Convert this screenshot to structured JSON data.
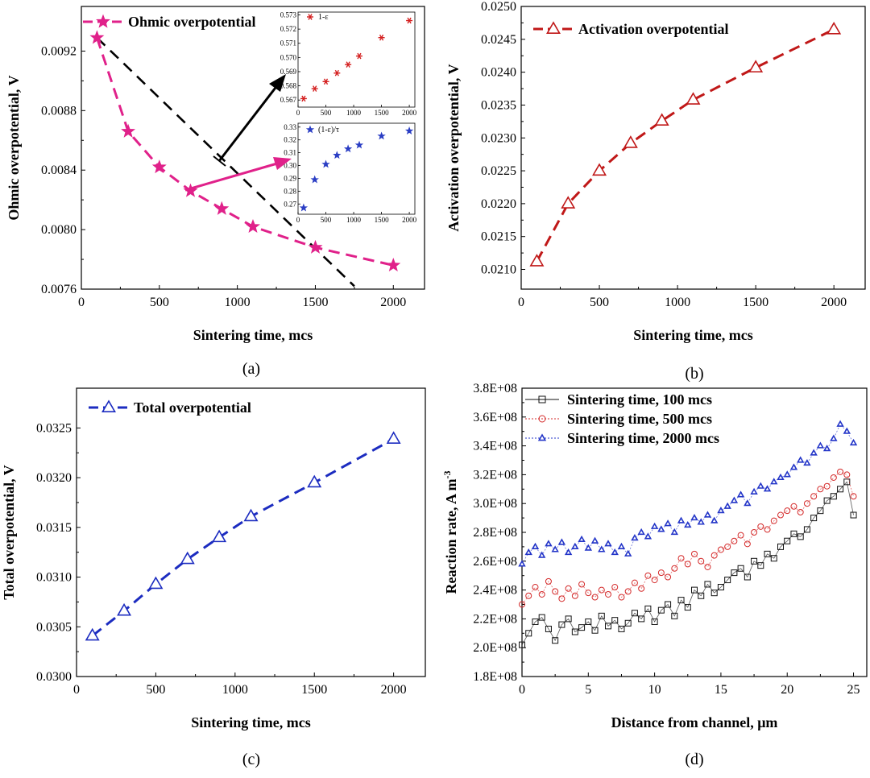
{
  "chart_data": [
    {
      "id": "a",
      "panel_label": "(a)",
      "type": "line",
      "xlabel": "Sintering time, mcs",
      "ylabel": "Ohmic overpotential, V",
      "xlim": [
        0,
        2200
      ],
      "ylim": [
        0.0076,
        0.0095
      ],
      "xticks": [
        0,
        500,
        1000,
        1500,
        2000
      ],
      "yticks": [
        0.0076,
        0.008,
        0.0084,
        0.0088,
        0.0092
      ],
      "xtick_labels": [
        "0",
        "500",
        "1000",
        "1500",
        "2000"
      ],
      "ytick_labels": [
        "0.0076",
        "0.0080",
        "0.0084",
        "0.0088",
        "0.0092"
      ],
      "legend_position": "top-left",
      "series": [
        {
          "name": "Ohmic overpotential",
          "color": "#e0218a",
          "marker": "star",
          "x": [
            100,
            300,
            500,
            700,
            900,
            1100,
            1500,
            2000
          ],
          "values": [
            0.00929,
            0.00866,
            0.00842,
            0.00826,
            0.00814,
            0.00802,
            0.00788,
            0.00776
          ]
        }
      ],
      "trend_line": {
        "color": "#000000",
        "x": [
          100,
          1750
        ],
        "values": [
          0.00929,
          0.00762
        ]
      },
      "insets": [
        {
          "label": "1-ε",
          "color": "#d42020",
          "marker": "asterisk",
          "xlim": [
            0,
            2100
          ],
          "ylim": [
            0.5665,
            0.5732
          ],
          "xticks": [
            0,
            500,
            1000,
            1500,
            2000
          ],
          "xtick_labels": [
            "0",
            "500",
            "1000",
            "1500",
            "2000"
          ],
          "yticks": [
            0.567,
            0.568,
            0.569,
            0.57,
            0.571,
            0.572,
            0.573
          ],
          "ytick_labels": [
            "0.567",
            "0.568",
            "0.569",
            "0.570",
            "0.571",
            "0.572",
            "0.573"
          ],
          "x": [
            100,
            300,
            500,
            700,
            900,
            1100,
            1500,
            2000
          ],
          "values": [
            0.5671,
            0.5678,
            0.5683,
            0.5689,
            0.5695,
            0.5701,
            0.5714,
            0.5726
          ]
        },
        {
          "label": "(1-ε)/τ",
          "color": "#2b3ec4",
          "marker": "star",
          "xlim": [
            0,
            2100
          ],
          "ylim": [
            0.262,
            0.333
          ],
          "xticks": [
            0,
            500,
            1000,
            1500,
            2000
          ],
          "xtick_labels": [
            "0",
            "500",
            "1000",
            "1500",
            "2000"
          ],
          "yticks": [
            0.27,
            0.28,
            0.29,
            0.3,
            0.31,
            0.32,
            0.33
          ],
          "ytick_labels": [
            "0.27",
            "0.28",
            "0.29",
            "0.30",
            "0.31",
            "0.32",
            "0.33"
          ],
          "x": [
            100,
            300,
            500,
            700,
            900,
            1100,
            1500,
            2000
          ],
          "values": [
            0.267,
            0.289,
            0.301,
            0.308,
            0.313,
            0.316,
            0.323,
            0.327
          ]
        }
      ]
    },
    {
      "id": "b",
      "panel_label": "(b)",
      "type": "line",
      "xlabel": "Sintering time, mcs",
      "ylabel": "Activation overpotential, V",
      "xlim": [
        0,
        2200
      ],
      "ylim": [
        0.0207,
        0.025
      ],
      "xticks": [
        0,
        500,
        1000,
        1500,
        2000
      ],
      "yticks": [
        0.021,
        0.0215,
        0.022,
        0.0225,
        0.023,
        0.0235,
        0.024,
        0.0245,
        0.025
      ],
      "xtick_labels": [
        "0",
        "500",
        "1000",
        "1500",
        "2000"
      ],
      "ytick_labels": [
        "0.0210",
        "0.0215",
        "0.0220",
        "0.0225",
        "0.0230",
        "0.0235",
        "0.0240",
        "0.0245",
        "0.0250"
      ],
      "legend_position": "top-left",
      "series": [
        {
          "name": "Activation overpotential",
          "color": "#c01818",
          "marker": "triangle",
          "x": [
            100,
            300,
            500,
            700,
            900,
            1100,
            1500,
            2000
          ],
          "values": [
            0.02112,
            0.022,
            0.0225,
            0.02292,
            0.02326,
            0.02358,
            0.02407,
            0.02465
          ]
        }
      ]
    },
    {
      "id": "c",
      "panel_label": "(c)",
      "type": "line",
      "xlabel": "Sintering time, mcs",
      "ylabel": "Total overpotential, V",
      "xlim": [
        0,
        2200
      ],
      "ylim": [
        0.03,
        0.0329
      ],
      "xticks": [
        0,
        500,
        1000,
        1500,
        2000
      ],
      "yticks": [
        0.03,
        0.0305,
        0.031,
        0.0315,
        0.032,
        0.0325
      ],
      "xtick_labels": [
        "0",
        "500",
        "1000",
        "1500",
        "2000"
      ],
      "ytick_labels": [
        "0.0300",
        "0.0305",
        "0.0310",
        "0.0315",
        "0.0320",
        "0.0325"
      ],
      "legend_position": "top-left",
      "series": [
        {
          "name": "Total overpotential",
          "color": "#1c2cc0",
          "marker": "triangle",
          "x": [
            100,
            300,
            500,
            700,
            900,
            1100,
            1500,
            2000
          ],
          "values": [
            0.03041,
            0.03066,
            0.03093,
            0.03118,
            0.0314,
            0.03161,
            0.03195,
            0.03239
          ]
        }
      ]
    },
    {
      "id": "d",
      "panel_label": "(d)",
      "type": "scatter",
      "xlabel": "Distance from channel, μm",
      "ylabel": "Reaction rate, A m",
      "ylabel_superscript": "-3",
      "xlim": [
        0,
        26
      ],
      "ylim": [
        180000000.0,
        380000000.0
      ],
      "xticks": [
        0,
        5,
        10,
        15,
        20,
        25
      ],
      "xtick_labels": [
        "0",
        "5",
        "10",
        "15",
        "20",
        "25"
      ],
      "yticks": [
        180000000.0,
        200000000.0,
        220000000.0,
        240000000.0,
        260000000.0,
        280000000.0,
        300000000.0,
        320000000.0,
        340000000.0,
        360000000.0,
        380000000.0
      ],
      "ytick_labels": [
        "1.8E+08",
        "2.0E+08",
        "2.2E+08",
        "2.4E+08",
        "2.6E+08",
        "2.8E+08",
        "3.0E+08",
        "3.2E+08",
        "3.4E+08",
        "3.6E+08",
        "3.8E+08"
      ],
      "legend_position": "top-left",
      "series": [
        {
          "name": "Sintering time, 100 mcs",
          "color": "#111111",
          "marker": "square",
          "x": [
            0,
            0.5,
            1,
            1.5,
            2,
            2.5,
            3,
            3.5,
            4,
            4.5,
            5,
            5.5,
            6,
            6.5,
            7,
            7.5,
            8,
            8.5,
            9,
            9.5,
            10,
            10.5,
            11,
            11.5,
            12,
            12.5,
            13,
            13.5,
            14,
            14.5,
            15,
            15.5,
            16,
            16.5,
            17,
            17.5,
            18,
            18.5,
            19,
            19.5,
            20,
            20.5,
            21,
            21.5,
            22,
            22.5,
            23,
            23.5,
            24,
            24.5,
            25
          ],
          "values": [
            202000000.0,
            210000000.0,
            218000000.0,
            221000000.0,
            213000000.0,
            205000000.0,
            216000000.0,
            220000000.0,
            211000000.0,
            214000000.0,
            218000000.0,
            212000000.0,
            222000000.0,
            215000000.0,
            219000000.0,
            213000000.0,
            217000000.0,
            224000000.0,
            220000000.0,
            227000000.0,
            218000000.0,
            226000000.0,
            230000000.0,
            222000000.0,
            233000000.0,
            228000000.0,
            240000000.0,
            236000000.0,
            244000000.0,
            238000000.0,
            242000000.0,
            247000000.0,
            252000000.0,
            255000000.0,
            249000000.0,
            260000000.0,
            257000000.0,
            265000000.0,
            262000000.0,
            270000000.0,
            274000000.0,
            279000000.0,
            277000000.0,
            282000000.0,
            290000000.0,
            295000000.0,
            302000000.0,
            305000000.0,
            310000000.0,
            315000000.0,
            292000000.0
          ]
        },
        {
          "name": "Sintering time, 500 mcs",
          "color": "#d42a2a",
          "marker": "circle",
          "x": [
            0,
            0.5,
            1,
            1.5,
            2,
            2.5,
            3,
            3.5,
            4,
            4.5,
            5,
            5.5,
            6,
            6.5,
            7,
            7.5,
            8,
            8.5,
            9,
            9.5,
            10,
            10.5,
            11,
            11.5,
            12,
            12.5,
            13,
            13.5,
            14,
            14.5,
            15,
            15.5,
            16,
            16.5,
            17,
            17.5,
            18,
            18.5,
            19,
            19.5,
            20,
            20.5,
            21,
            21.5,
            22,
            22.5,
            23,
            23.5,
            24,
            24.5,
            25
          ],
          "values": [
            230000000.0,
            236000000.0,
            242000000.0,
            237000000.0,
            246000000.0,
            239000000.0,
            234000000.0,
            241000000.0,
            236000000.0,
            244000000.0,
            238000000.0,
            235000000.0,
            240000000.0,
            237000000.0,
            242000000.0,
            235000000.0,
            239000000.0,
            245000000.0,
            241000000.0,
            250000000.0,
            247000000.0,
            252000000.0,
            249000000.0,
            255000000.0,
            262000000.0,
            258000000.0,
            265000000.0,
            260000000.0,
            256000000.0,
            264000000.0,
            268000000.0,
            270000000.0,
            274000000.0,
            278000000.0,
            272000000.0,
            280000000.0,
            284000000.0,
            282000000.0,
            288000000.0,
            292000000.0,
            295000000.0,
            298000000.0,
            294000000.0,
            300000000.0,
            305000000.0,
            310000000.0,
            312000000.0,
            318000000.0,
            322000000.0,
            320000000.0,
            305000000.0
          ]
        },
        {
          "name": "Sintering time, 2000 mcs",
          "color": "#2335c8",
          "marker": "triangle",
          "x": [
            0,
            0.5,
            1,
            1.5,
            2,
            2.5,
            3,
            3.5,
            4,
            4.5,
            5,
            5.5,
            6,
            6.5,
            7,
            7.5,
            8,
            8.5,
            9,
            9.5,
            10,
            10.5,
            11,
            11.5,
            12,
            12.5,
            13,
            13.5,
            14,
            14.5,
            15,
            15.5,
            16,
            16.5,
            17,
            17.5,
            18,
            18.5,
            19,
            19.5,
            20,
            20.5,
            21,
            21.5,
            22,
            22.5,
            23,
            23.5,
            24,
            24.5,
            25
          ],
          "values": [
            258000000.0,
            266000000.0,
            270000000.0,
            264000000.0,
            272000000.0,
            268000000.0,
            273000000.0,
            266000000.0,
            270000000.0,
            275000000.0,
            269000000.0,
            274000000.0,
            268000000.0,
            272000000.0,
            266000000.0,
            270000000.0,
            265000000.0,
            276000000.0,
            280000000.0,
            277000000.0,
            284000000.0,
            282000000.0,
            286000000.0,
            280000000.0,
            288000000.0,
            285000000.0,
            290000000.0,
            287000000.0,
            292000000.0,
            288000000.0,
            295000000.0,
            298000000.0,
            302000000.0,
            306000000.0,
            300000000.0,
            308000000.0,
            312000000.0,
            310000000.0,
            315000000.0,
            318000000.0,
            320000000.0,
            325000000.0,
            330000000.0,
            328000000.0,
            335000000.0,
            340000000.0,
            338000000.0,
            345000000.0,
            355000000.0,
            350000000.0,
            342000000.0
          ]
        }
      ]
    }
  ]
}
